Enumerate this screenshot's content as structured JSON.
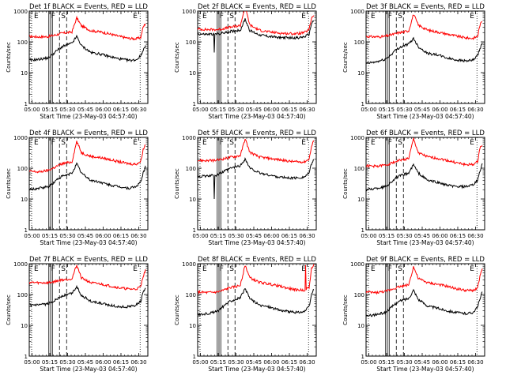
{
  "chart_data": {
    "type": "line",
    "layout": "3x3 grid",
    "y_scale": "log",
    "ylim": [
      1,
      1000
    ],
    "y_ticks": [
      1,
      10,
      100,
      1000
    ],
    "y_tick_labels": [
      "1",
      "10",
      "100",
      "1000"
    ],
    "ylabel": "Counts/sec",
    "x_ticks": [
      "05:00",
      "05:15",
      "05:30",
      "05:45",
      "06:00",
      "06:15",
      "06:30"
    ],
    "xlabel": "Start Time (23-May-03 04:57:40)",
    "marker_labels": {
      "e": "E",
      "f": "F",
      "s": "S"
    },
    "series_colors": {
      "events": "#000000",
      "lld": "#ff0000"
    },
    "time_grid": [
      0,
      8,
      16,
      20,
      24,
      28,
      32,
      36,
      40,
      44,
      52,
      60,
      68,
      76,
      84,
      90,
      94,
      96,
      98
    ],
    "panels": [
      {
        "title": "Det 1f BLACK = Events, RED = LLD",
        "red": [
          150,
          145,
          148,
          160,
          175,
          190,
          200,
          210,
          600,
          330,
          230,
          210,
          180,
          150,
          130,
          125,
          140,
          300,
          400
        ],
        "black": [
          25,
          27,
          30,
          40,
          55,
          70,
          80,
          90,
          150,
          75,
          45,
          40,
          33,
          28,
          25,
          26,
          35,
          55,
          70
        ]
      },
      {
        "title": "Det 2f BLACK = Events, RED = LLD",
        "red": [
          260,
          250,
          250,
          260,
          280,
          300,
          320,
          340,
          1400,
          350,
          240,
          210,
          195,
          185,
          185,
          200,
          250,
          600,
          750
        ],
        "black": [
          180,
          175,
          180,
          190,
          200,
          220,
          230,
          240,
          550,
          230,
          170,
          150,
          140,
          135,
          135,
          145,
          175,
          400,
          500
        ],
        "black_dips": [
          {
            "t": 14,
            "v": 45
          }
        ]
      },
      {
        "title": "Det 3f BLACK = Events, RED = LLD",
        "red": [
          150,
          145,
          150,
          165,
          180,
          200,
          210,
          230,
          800,
          350,
          240,
          210,
          180,
          155,
          135,
          130,
          150,
          350,
          480
        ],
        "black": [
          20,
          22,
          27,
          35,
          50,
          65,
          75,
          85,
          130,
          70,
          42,
          38,
          30,
          26,
          24,
          25,
          35,
          60,
          90
        ]
      },
      {
        "title": "Det 4f BLACK = Events, RED = LLD",
        "red": [
          80,
          75,
          85,
          100,
          120,
          140,
          150,
          160,
          750,
          320,
          240,
          220,
          190,
          160,
          140,
          135,
          165,
          400,
          600
        ],
        "black": [
          20,
          22,
          25,
          32,
          45,
          55,
          60,
          70,
          140,
          70,
          40,
          35,
          28,
          25,
          22,
          25,
          35,
          70,
          110
        ]
      },
      {
        "title": "Det 5f BLACK = Events, RED = LLD",
        "red": [
          180,
          175,
          180,
          195,
          210,
          230,
          240,
          260,
          900,
          330,
          230,
          210,
          190,
          170,
          160,
          160,
          200,
          500,
          800
        ],
        "black": [
          55,
          55,
          60,
          70,
          85,
          100,
          110,
          120,
          200,
          100,
          70,
          60,
          52,
          48,
          48,
          52,
          70,
          140,
          200
        ],
        "black_dips": [
          {
            "t": 14,
            "v": 10
          }
        ]
      },
      {
        "title": "Det 6f BLACK = Events, RED = LLD",
        "red": [
          120,
          115,
          125,
          140,
          160,
          180,
          190,
          210,
          900,
          320,
          230,
          210,
          180,
          150,
          130,
          130,
          160,
          450,
          600
        ],
        "black": [
          20,
          22,
          25,
          32,
          45,
          55,
          62,
          70,
          130,
          70,
          40,
          35,
          28,
          25,
          25,
          28,
          40,
          80,
          140
        ]
      },
      {
        "title": "Det 7f BLACK = Events, RED = LLD",
        "red": [
          250,
          240,
          240,
          255,
          280,
          300,
          310,
          330,
          900,
          350,
          240,
          220,
          190,
          165,
          150,
          150,
          180,
          400,
          600
        ],
        "black": [
          45,
          45,
          50,
          60,
          75,
          90,
          100,
          110,
          180,
          95,
          60,
          52,
          45,
          40,
          40,
          45,
          60,
          120,
          150
        ]
      },
      {
        "title": "Det 8f BLACK = Events, RED = LLD",
        "red": [
          120,
          115,
          120,
          130,
          150,
          170,
          180,
          200,
          900,
          350,
          250,
          220,
          190,
          160,
          140,
          140,
          170,
          700,
          900
        ],
        "black": [
          22,
          24,
          28,
          36,
          50,
          62,
          70,
          80,
          150,
          75,
          45,
          40,
          32,
          28,
          26,
          28,
          40,
          100,
          150
        ],
        "red_spikes": [
          {
            "t": 91,
            "v": 900
          }
        ]
      },
      {
        "title": "Det 9f BLACK = Events, RED = LLD",
        "red": [
          120,
          115,
          125,
          140,
          160,
          180,
          190,
          210,
          800,
          330,
          240,
          215,
          185,
          155,
          135,
          135,
          160,
          400,
          650
        ],
        "black": [
          20,
          22,
          26,
          34,
          48,
          60,
          68,
          75,
          140,
          70,
          42,
          36,
          30,
          26,
          24,
          26,
          38,
          75,
          120
        ]
      }
    ]
  }
}
